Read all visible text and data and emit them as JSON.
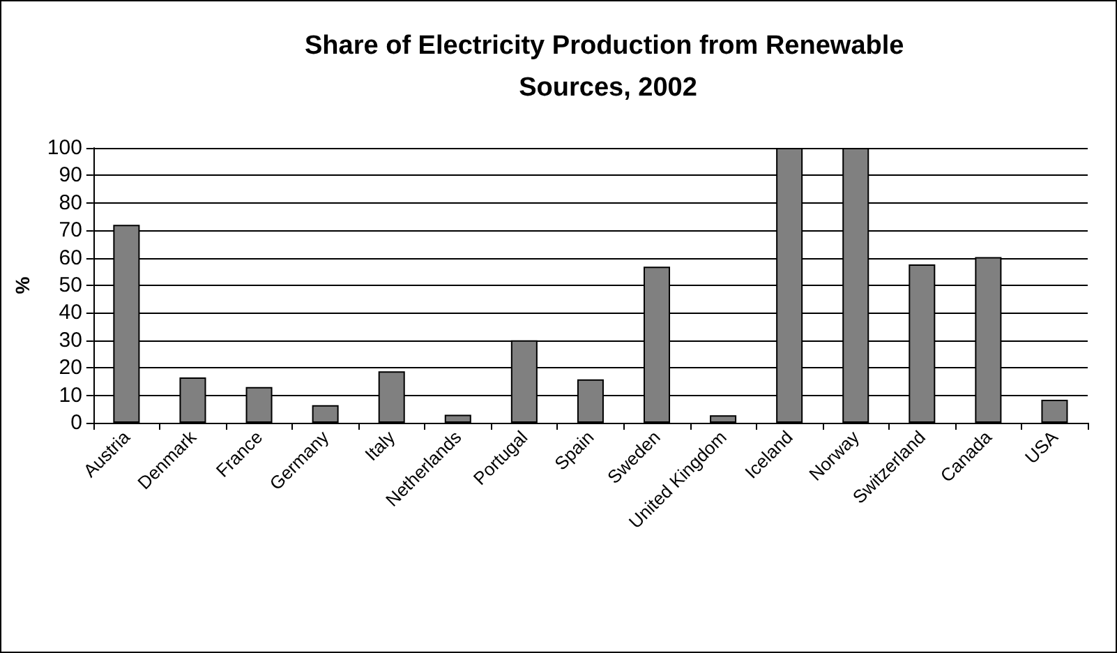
{
  "chart_data": {
    "type": "bar",
    "title": "Share of Electricity Production from Renewable Sources, 2002",
    "ylabel": "%",
    "categories": [
      "Austria",
      "Denmark",
      "France",
      "Germany",
      "Italy",
      "Netherlands",
      "Portugal",
      "Spain",
      "Sweden",
      "United Kingdom",
      "Iceland",
      "Norway",
      "Switzerland",
      "Canada",
      "USA"
    ],
    "values": [
      72,
      16.5,
      13,
      6.4,
      18.7,
      2.9,
      30,
      15.8,
      56.8,
      2.7,
      100,
      100,
      57.6,
      60.3,
      8.4
    ],
    "color": "#808080",
    "ylim": [
      0,
      100
    ],
    "yticks": [
      0,
      10,
      20,
      30,
      40,
      50,
      60,
      70,
      80,
      90,
      100
    ],
    "grid": "y"
  }
}
